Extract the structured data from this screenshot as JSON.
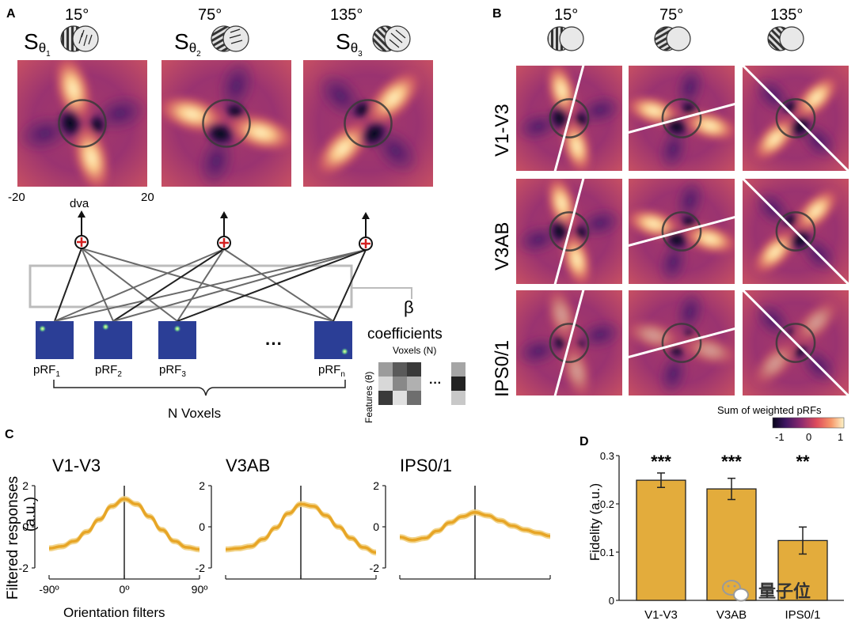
{
  "panels": {
    "a": "A",
    "b": "B",
    "c": "C",
    "d": "D"
  },
  "panel_a": {
    "angles": [
      "15°",
      "75°",
      "135°"
    ],
    "s_letter": "S",
    "s_sub": "θ",
    "s_idx": [
      "1",
      "2",
      "3"
    ],
    "axis_min": "-20",
    "axis_max": "20",
    "dva": "dva",
    "beta": "β",
    "coefficients": "coefficients",
    "voxels_n": "Voxels (N)",
    "features": "Features (θ)",
    "ellipsis": "···",
    "prf_labels": [
      {
        "base": "pRF",
        "sub": "1"
      },
      {
        "base": "pRF",
        "sub": "2"
      },
      {
        "base": "pRF",
        "sub": "3"
      },
      {
        "base": "pRF",
        "sub": "n"
      }
    ],
    "n_voxels": "N Voxels"
  },
  "panel_b": {
    "angles": [
      "15°",
      "75°",
      "135°"
    ],
    "rows": [
      "V1-V3",
      "V3AB",
      "IPS0/1"
    ],
    "colorbar_title": "Sum of weighted pRFs",
    "colorbar_ticks": [
      "-1",
      "0",
      "1"
    ]
  },
  "panel_c": {
    "ylabel": "Filtered responses",
    "ylabel2": "(a.u.)",
    "xlabel": "Orientation filters",
    "xticks": [
      "-90º",
      "0º",
      "90º"
    ],
    "yticks": [
      "2",
      "0",
      "-2"
    ],
    "chart_data": [
      {
        "type": "line",
        "title": "V1-V3",
        "xlabel": "Orientation filters",
        "ylabel": "Filtered responses (a.u.)",
        "x": [
          -90,
          -75,
          -60,
          -45,
          -30,
          -15,
          0,
          15,
          30,
          45,
          60,
          75,
          90
        ],
        "y": [
          -1.05,
          -0.95,
          -0.7,
          -0.25,
          0.35,
          1.0,
          1.35,
          1.1,
          0.5,
          -0.15,
          -0.7,
          -1.0,
          -1.1
        ],
        "xlim": [
          -90,
          90
        ],
        "ylim": [
          -2,
          2
        ]
      },
      {
        "type": "line",
        "title": "V3AB",
        "xlabel": "Orientation filters",
        "ylabel": "Filtered responses (a.u.)",
        "x": [
          -90,
          -75,
          -60,
          -45,
          -30,
          -15,
          0,
          15,
          30,
          45,
          60,
          75,
          90
        ],
        "y": [
          -1.1,
          -1.05,
          -0.95,
          -0.6,
          -0.05,
          0.65,
          1.1,
          1.0,
          0.55,
          0.0,
          -0.55,
          -1.0,
          -1.25
        ],
        "xlim": [
          -90,
          90
        ],
        "ylim": [
          -2,
          2
        ]
      },
      {
        "type": "line",
        "title": "IPS0/1",
        "xlabel": "Orientation filters",
        "ylabel": "Filtered responses (a.u.)",
        "x": [
          -90,
          -75,
          -60,
          -45,
          -30,
          -15,
          0,
          15,
          30,
          45,
          60,
          75,
          90
        ],
        "y": [
          -0.5,
          -0.65,
          -0.55,
          -0.2,
          0.2,
          0.5,
          0.7,
          0.55,
          0.3,
          0.05,
          -0.15,
          -0.3,
          -0.45
        ],
        "xlim": [
          -90,
          90
        ],
        "ylim": [
          -2,
          2
        ]
      }
    ]
  },
  "panel_d": {
    "chart_data": {
      "type": "bar",
      "categories": [
        "V1-V3",
        "V3AB",
        "IPS0/1"
      ],
      "values": [
        0.249,
        0.231,
        0.124
      ],
      "errors": [
        0.015,
        0.022,
        0.028
      ],
      "significance": [
        "***",
        "***",
        "**"
      ],
      "ylabel": "Fidelity (a.u.)",
      "yticks": [
        "0",
        "0.1",
        "0.2",
        "0.3"
      ],
      "ylim": [
        0,
        0.3
      ]
    }
  },
  "watermark": "量子位",
  "colors": {
    "bar": "#e3ac3c",
    "line": "#e7a526",
    "line_light": "#f1cf7d"
  }
}
